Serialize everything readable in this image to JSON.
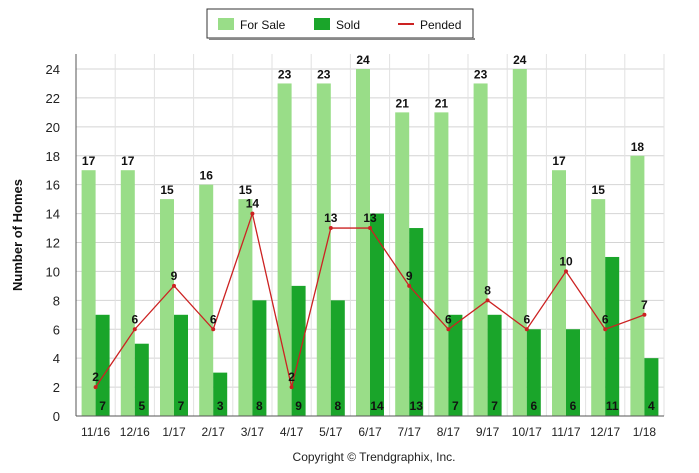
{
  "chart_data": {
    "type": "bar",
    "categories": [
      "11/16",
      "12/16",
      "1/17",
      "2/17",
      "3/17",
      "4/17",
      "5/17",
      "6/17",
      "7/17",
      "8/17",
      "9/17",
      "10/17",
      "11/17",
      "12/17",
      "1/18"
    ],
    "series": [
      {
        "name": "For Sale",
        "type": "bar",
        "color": "#99dd88",
        "values": [
          17,
          17,
          15,
          16,
          15,
          23,
          23,
          24,
          21,
          21,
          23,
          24,
          17,
          15,
          18
        ]
      },
      {
        "name": "Sold",
        "type": "bar",
        "color": "#1aa52a",
        "values": [
          7,
          5,
          7,
          3,
          8,
          9,
          8,
          14,
          13,
          7,
          7,
          6,
          6,
          11,
          4
        ]
      },
      {
        "name": "Pended",
        "type": "line",
        "color": "#cc2222",
        "values": [
          2,
          6,
          9,
          6,
          14,
          2,
          13,
          13,
          9,
          6,
          8,
          6,
          10,
          6,
          7
        ]
      }
    ],
    "ylabel": "Number of Homes",
    "ylim": [
      0,
      24
    ],
    "yticks": [
      0,
      2,
      4,
      6,
      8,
      10,
      12,
      14,
      16,
      18,
      20,
      22,
      24
    ],
    "grid": true,
    "legend_position": "top-center",
    "copyright": "Copyright © Trendgraphix, Inc."
  }
}
